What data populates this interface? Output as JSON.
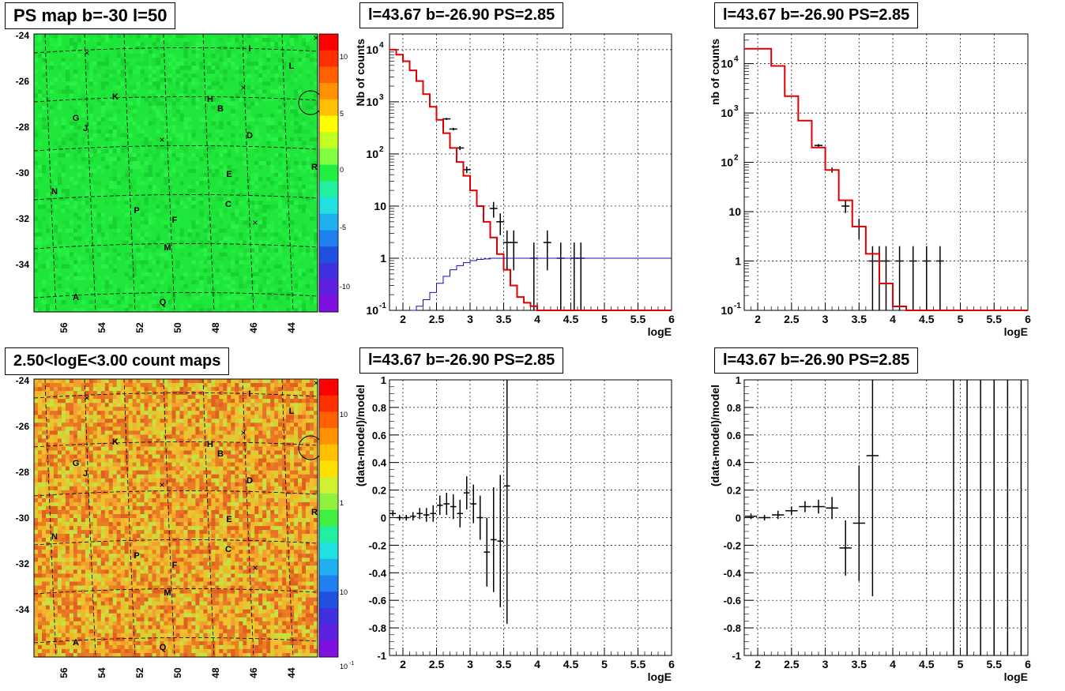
{
  "panels": {
    "ps_map": {
      "title": "PS map b=-30 l=50"
    },
    "count_map": {
      "title": "2.50<logE<3.00 count maps"
    },
    "spec1": {
      "title": "l=43.67 b=-26.90 PS=2.85"
    },
    "spec2": {
      "title": "l=43.67 b=-26.90 PS=2.85"
    },
    "resid1": {
      "title": "l=43.67 b=-26.90 PS=2.85"
    },
    "resid2": {
      "title": "l=43.67 b=-26.90 PS=2.85"
    }
  },
  "maps": {
    "lon_ticks": [
      "56",
      "54",
      "52",
      "50",
      "48",
      "46",
      "44"
    ],
    "lat_ticks": [
      "-24",
      "-26",
      "-28",
      "-30",
      "-32",
      "-34"
    ],
    "source_labels": [
      "A",
      "B",
      "C",
      "D",
      "E",
      "F",
      "G",
      "H",
      "I",
      "J",
      "K",
      "L",
      "M",
      "N",
      "P",
      "Q",
      "R"
    ],
    "ps_colorbar_ticks": [
      "10",
      "5",
      "0",
      "-5",
      "-10"
    ],
    "count_colorbar_ticks": [
      "10",
      "1",
      "10",
      "-1"
    ],
    "colors": {
      "ps_background": "#1ee63a",
      "count_background": "#e8a020"
    }
  },
  "chart_data": [
    {
      "type": "line",
      "panel": "spec1",
      "title": "l=43.67 b=-26.90 PS=2.85",
      "xlabel": "logE",
      "ylabel": "Nb of counts",
      "xlim": [
        1.8,
        6
      ],
      "ylim": [
        0.1,
        20000
      ],
      "yscale": "log",
      "grid": true,
      "x_ticks": [
        "2",
        "2.5",
        "3",
        "3.5",
        "4",
        "4.5",
        "5",
        "5.5",
        "6"
      ],
      "y_ticks": [
        "10^4",
        "10^3",
        "10^2",
        "10",
        "1",
        "10^-1"
      ],
      "series": [
        {
          "kind": "data",
          "color": "#000000",
          "x": [
            2.65,
            2.75,
            2.85,
            2.95,
            3.35,
            3.45,
            3.55,
            3.65,
            3.95,
            4.15,
            4.35,
            4.55,
            4.65
          ],
          "y": [
            470,
            300,
            130,
            50,
            9,
            5,
            2,
            2,
            1,
            2,
            1,
            1,
            1
          ]
        },
        {
          "kind": "model",
          "color": "#e00000",
          "x": [
            1.8,
            1.9,
            2.0,
            2.1,
            2.2,
            2.3,
            2.4,
            2.5,
            2.6,
            2.7,
            2.8,
            2.9,
            3.0,
            3.1,
            3.2,
            3.3,
            3.4,
            3.5,
            3.6,
            3.7,
            3.8,
            3.9,
            4.0,
            4.1,
            6.0
          ],
          "y": [
            10000,
            8000,
            6000,
            4000,
            2500,
            1400,
            800,
            450,
            250,
            130,
            70,
            38,
            20,
            10,
            5,
            2.5,
            1.2,
            0.6,
            0.3,
            0.18,
            0.14,
            0.12,
            0.1,
            0.1,
            0.1
          ]
        },
        {
          "kind": "background",
          "color": "#1010c0",
          "x": [
            2.1,
            2.2,
            2.3,
            2.4,
            2.5,
            2.6,
            2.7,
            2.8,
            2.9,
            3.0,
            3.1,
            3.2,
            3.3,
            3.5,
            6.0
          ],
          "y": [
            0.1,
            0.12,
            0.16,
            0.22,
            0.33,
            0.45,
            0.6,
            0.72,
            0.82,
            0.9,
            0.95,
            0.97,
            1.0,
            1.0,
            1.0
          ]
        }
      ]
    },
    {
      "type": "line",
      "panel": "spec2",
      "title": "l=43.67 b=-26.90 PS=2.85",
      "xlabel": "logE",
      "ylabel": "nb of counts",
      "xlim": [
        1.8,
        6
      ],
      "ylim": [
        0.1,
        40000
      ],
      "yscale": "log",
      "grid": true,
      "x_ticks": [
        "2",
        "2.5",
        "3",
        "3.5",
        "4",
        "4.5",
        "5",
        "5.5",
        "6"
      ],
      "y_ticks": [
        "10^4",
        "10^3",
        "10^2",
        "10",
        "1",
        "10^-1"
      ],
      "series": [
        {
          "kind": "data",
          "color": "#000000",
          "x": [
            2.9,
            3.1,
            3.3,
            3.5,
            3.7,
            3.8,
            3.9,
            4.1,
            4.3,
            4.5,
            4.7
          ],
          "y": [
            220,
            70,
            13,
            5,
            1,
            1,
            1,
            1,
            1,
            1,
            1
          ]
        },
        {
          "kind": "model",
          "color": "#e00000",
          "x": [
            1.8,
            2.0,
            2.2,
            2.4,
            2.6,
            2.8,
            3.0,
            3.2,
            3.4,
            3.6,
            3.8,
            4.0,
            4.2,
            6.0
          ],
          "y": [
            20000,
            20000,
            9000,
            2200,
            700,
            200,
            70,
            17,
            5,
            1.4,
            0.35,
            0.12,
            0.1,
            0.1
          ]
        }
      ]
    },
    {
      "type": "scatter",
      "panel": "resid1",
      "title": "l=43.67 b=-26.90 PS=2.85",
      "xlabel": "logE",
      "ylabel": "(data-model)/model",
      "xlim": [
        1.8,
        6
      ],
      "ylim": [
        -1,
        1
      ],
      "grid": true,
      "x_ticks": [
        "2",
        "2.5",
        "3",
        "3.5",
        "4",
        "4.5",
        "5",
        "5.5",
        "6"
      ],
      "y_ticks": [
        "1",
        "0.8",
        "0.6",
        "0.4",
        "0.2",
        "0",
        "-0.2",
        "-0.4",
        "-0.6",
        "-0.8",
        "-1"
      ],
      "series": [
        {
          "kind": "residual",
          "color": "#000000",
          "x": [
            1.85,
            1.95,
            2.05,
            2.15,
            2.25,
            2.35,
            2.45,
            2.55,
            2.65,
            2.75,
            2.85,
            2.95,
            3.05,
            3.15,
            3.25,
            3.35,
            3.45,
            3.55
          ],
          "y": [
            0.03,
            0.0,
            0.0,
            0.01,
            0.03,
            0.02,
            0.03,
            0.09,
            0.1,
            0.08,
            0.03,
            0.18,
            0.1,
            0.0,
            -0.25,
            -0.16,
            -0.17,
            0.23
          ],
          "err": [
            0.02,
            0.02,
            0.02,
            0.03,
            0.04,
            0.05,
            0.06,
            0.07,
            0.08,
            0.09,
            0.1,
            0.12,
            0.14,
            0.16,
            0.25,
            0.38,
            0.48,
            1.0
          ]
        }
      ]
    },
    {
      "type": "scatter",
      "panel": "resid2",
      "title": "l=43.67 b=-26.90 PS=2.85",
      "xlabel": "logE",
      "ylabel": "(data-model)/model",
      "xlim": [
        1.8,
        6
      ],
      "ylim": [
        -1,
        1
      ],
      "grid": true,
      "x_ticks": [
        "2",
        "2.5",
        "3",
        "3.5",
        "4",
        "4.5",
        "5",
        "5.5",
        "6"
      ],
      "y_ticks": [
        "1",
        "0.8",
        "0.6",
        "0.4",
        "0.2",
        "0",
        "-0.2",
        "-0.4",
        "-0.6",
        "-0.8",
        "-1"
      ],
      "series": [
        {
          "kind": "residual",
          "color": "#000000",
          "x": [
            1.9,
            2.1,
            2.3,
            2.5,
            2.7,
            2.9,
            3.1,
            3.3,
            3.5,
            3.7
          ],
          "y": [
            0.01,
            0.0,
            0.02,
            0.05,
            0.08,
            0.08,
            0.07,
            -0.22,
            -0.04,
            0.45
          ],
          "err": [
            0.02,
            0.02,
            0.03,
            0.03,
            0.04,
            0.05,
            0.08,
            0.2,
            0.42,
            1.02
          ]
        },
        {
          "kind": "full_range_bars",
          "color": "#000000",
          "x": [
            4.9,
            5.1,
            5.3,
            5.5,
            5.7,
            5.9
          ]
        }
      ]
    }
  ]
}
